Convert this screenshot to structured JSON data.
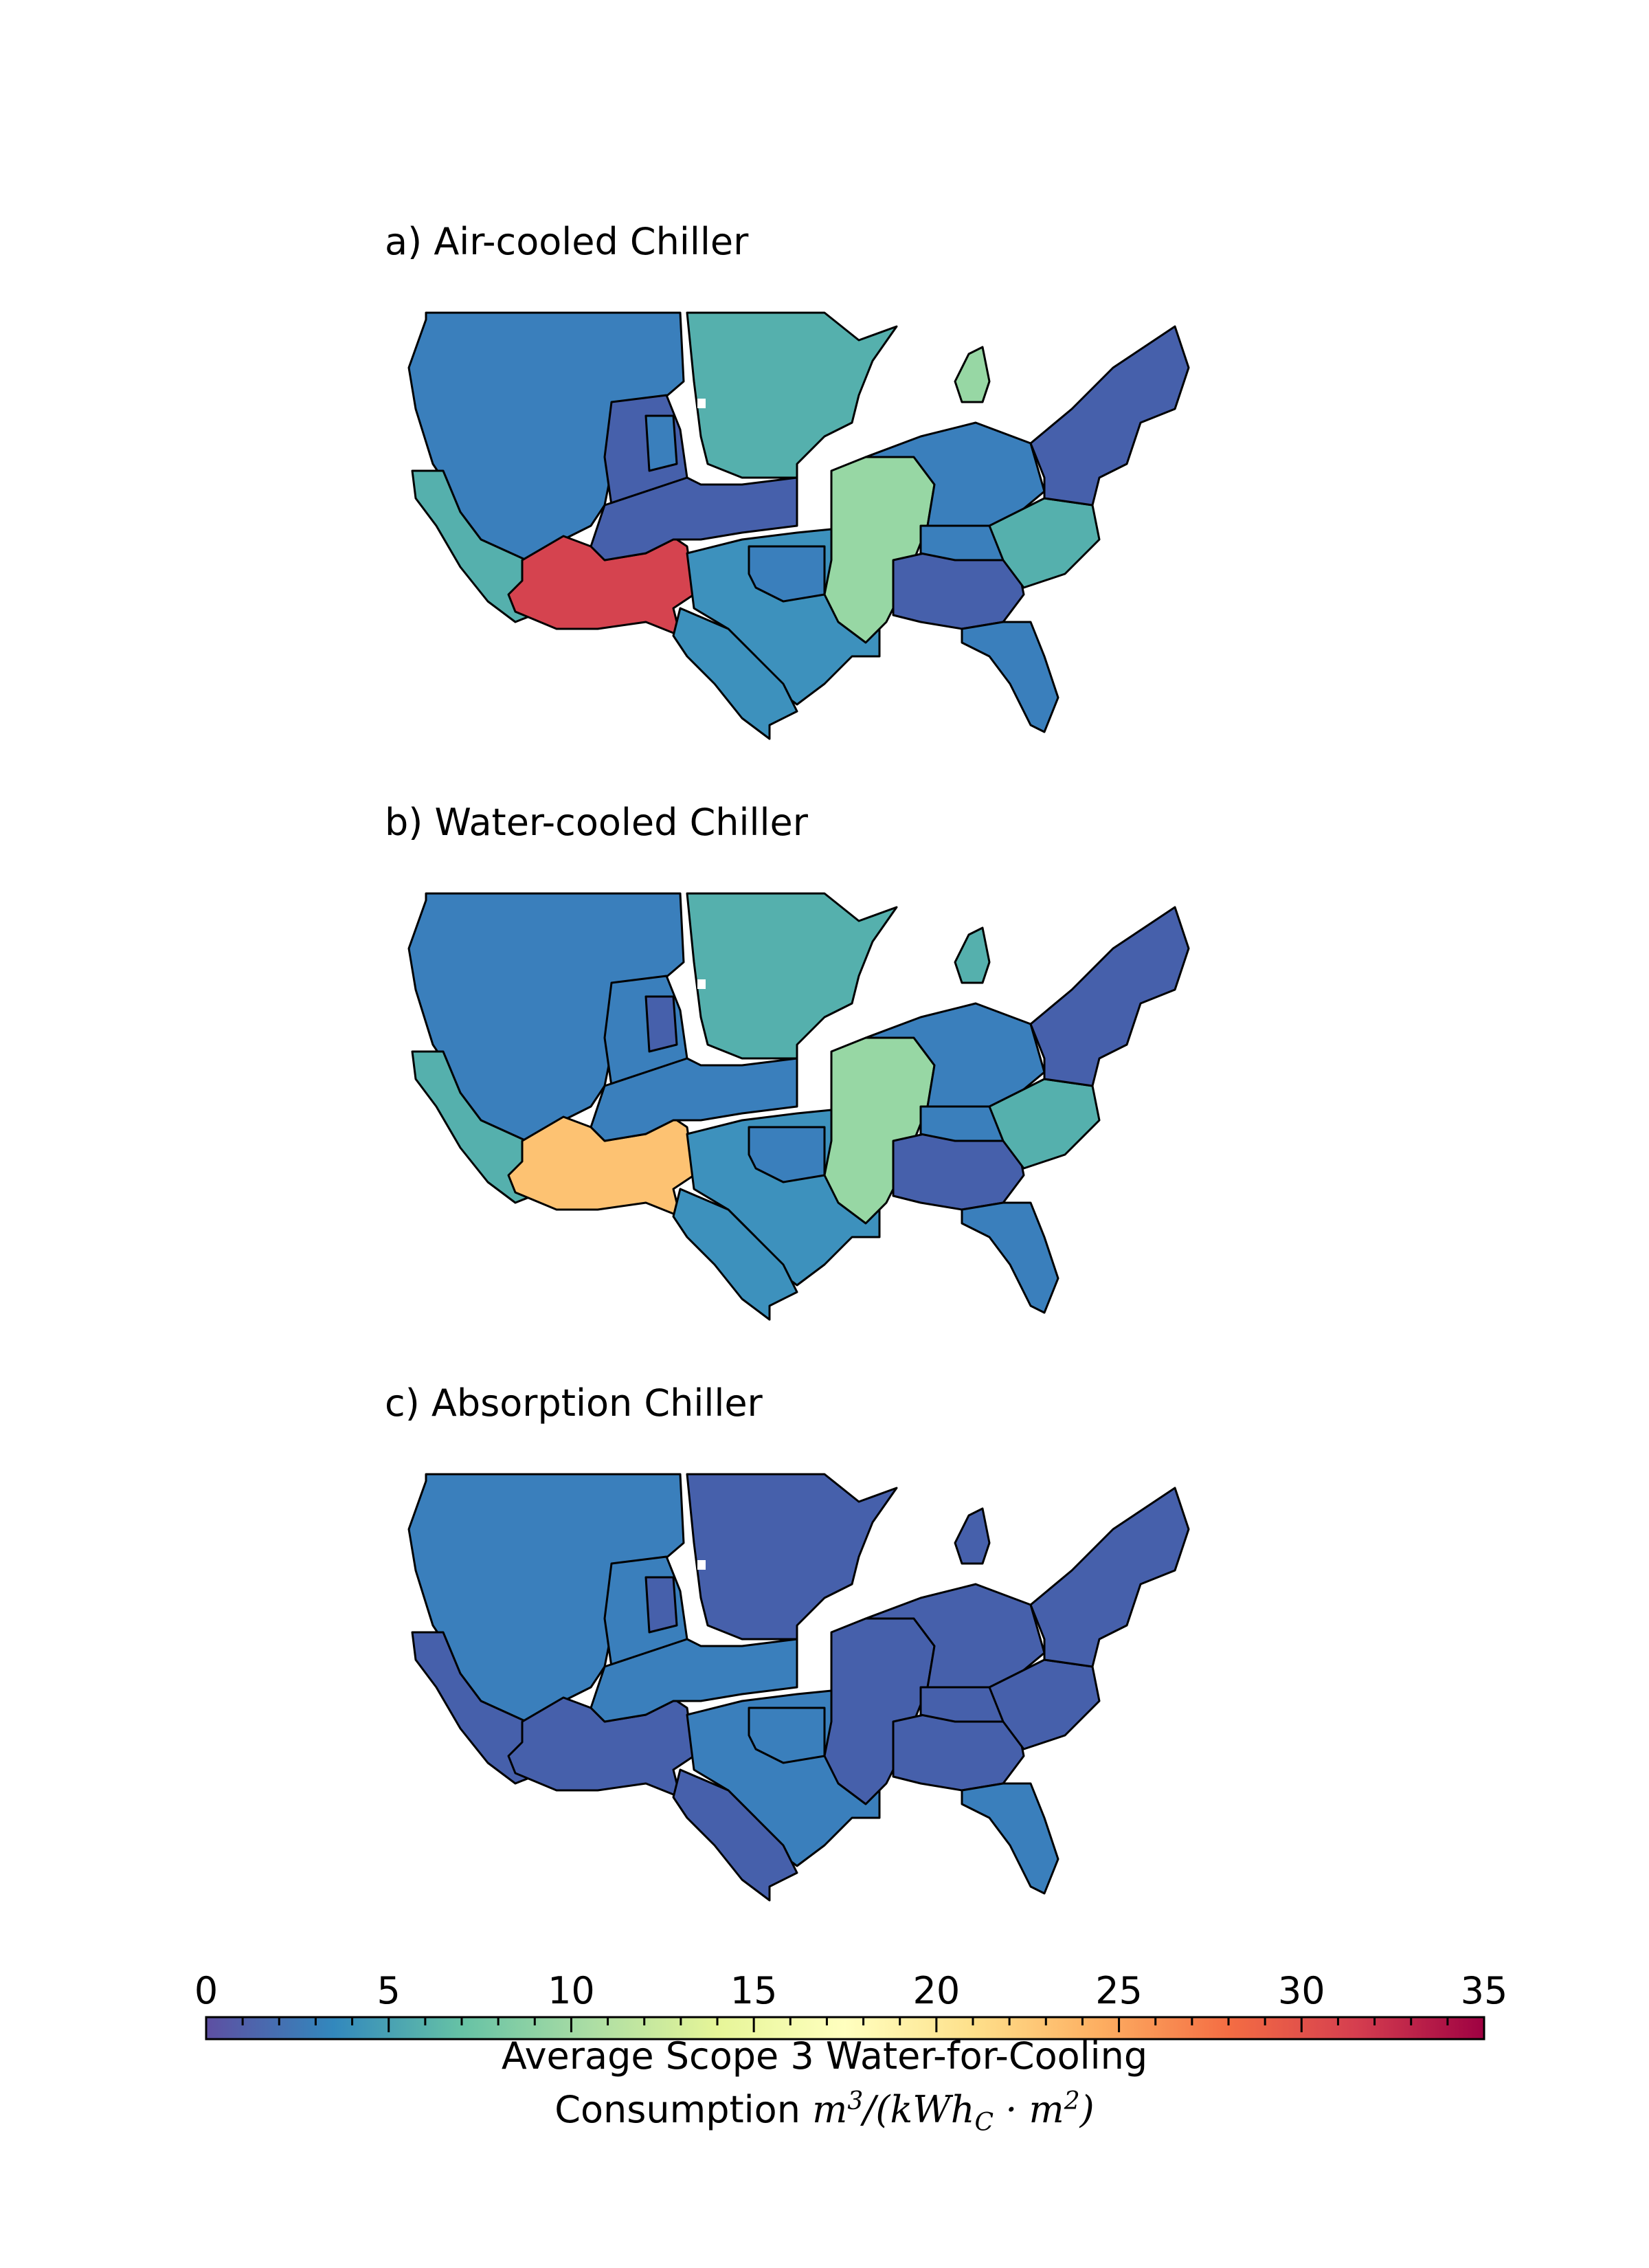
{
  "panels": [
    {
      "id": "a",
      "title": "a) Air-cooled Chiller",
      "colors": {
        "northwest": "#3a7fbc",
        "great_basin": "#4660ab",
        "basin_inner": "#3a7fbc",
        "california": "#55b0ad",
        "southwest": "#d5434f",
        "rockies": "#4660ab",
        "plains_north": "#55b0ad",
        "plains_central": "#3d91bd",
        "texas": "#3d91bd",
        "oklahoma": "#3a7fbc",
        "mississippi": "#97d7a4",
        "midwest": "#3a7fbc",
        "michigan": "#97d7a4",
        "southeast": "#4660ab",
        "tennessee": "#3a7fbc",
        "carolinas": "#55b0ad",
        "northeast": "#4660ab",
        "florida": "#3a7fbc"
      }
    },
    {
      "id": "b",
      "title": "b) Water-cooled Chiller",
      "colors": {
        "northwest": "#3a7fbc",
        "great_basin": "#3a7fbc",
        "basin_inner": "#4660ab",
        "california": "#55b0ad",
        "southwest": "#fdc272",
        "rockies": "#3a7fbc",
        "plains_north": "#55b0ad",
        "plains_central": "#3d91bd",
        "texas": "#3d91bd",
        "oklahoma": "#3a7fbc",
        "mississippi": "#97d7a4",
        "midwest": "#3a7fbc",
        "michigan": "#55b0ad",
        "southeast": "#4660ab",
        "tennessee": "#3a7fbc",
        "carolinas": "#55b0ad",
        "northeast": "#4660ab",
        "florida": "#3a7fbc"
      }
    },
    {
      "id": "c",
      "title": "c) Absorption Chiller",
      "colors": {
        "northwest": "#3a7fbc",
        "great_basin": "#3a7fbc",
        "basin_inner": "#4660ab",
        "california": "#4660ab",
        "southwest": "#4660ab",
        "rockies": "#3a7fbc",
        "plains_north": "#4660ab",
        "plains_central": "#3a7fbc",
        "texas": "#4660ab",
        "oklahoma": "#3a7fbc",
        "mississippi": "#4660ab",
        "midwest": "#4660ab",
        "michigan": "#4660ab",
        "southeast": "#4660ab",
        "tennessee": "#4660ab",
        "carolinas": "#4660ab",
        "northeast": "#4660ab",
        "florida": "#3a7fbc"
      }
    }
  ],
  "colorbar": {
    "min": 0,
    "max": 35,
    "major_step": 5,
    "minor_step": 1,
    "tick_labels": [
      "0",
      "5",
      "10",
      "15",
      "20",
      "25",
      "30",
      "35"
    ],
    "colormap": "Spectral_r",
    "stops": [
      "#5e4fa2",
      "#3288bd",
      "#66c2a5",
      "#abdda4",
      "#e6f598",
      "#ffffbf",
      "#fee08b",
      "#fdae61",
      "#f46d43",
      "#d53e4f",
      "#9e0142"
    ],
    "label_line1": "Average Scope 3 Water-for-Cooling",
    "label_line2_prefix": "Consumption "
  }
}
